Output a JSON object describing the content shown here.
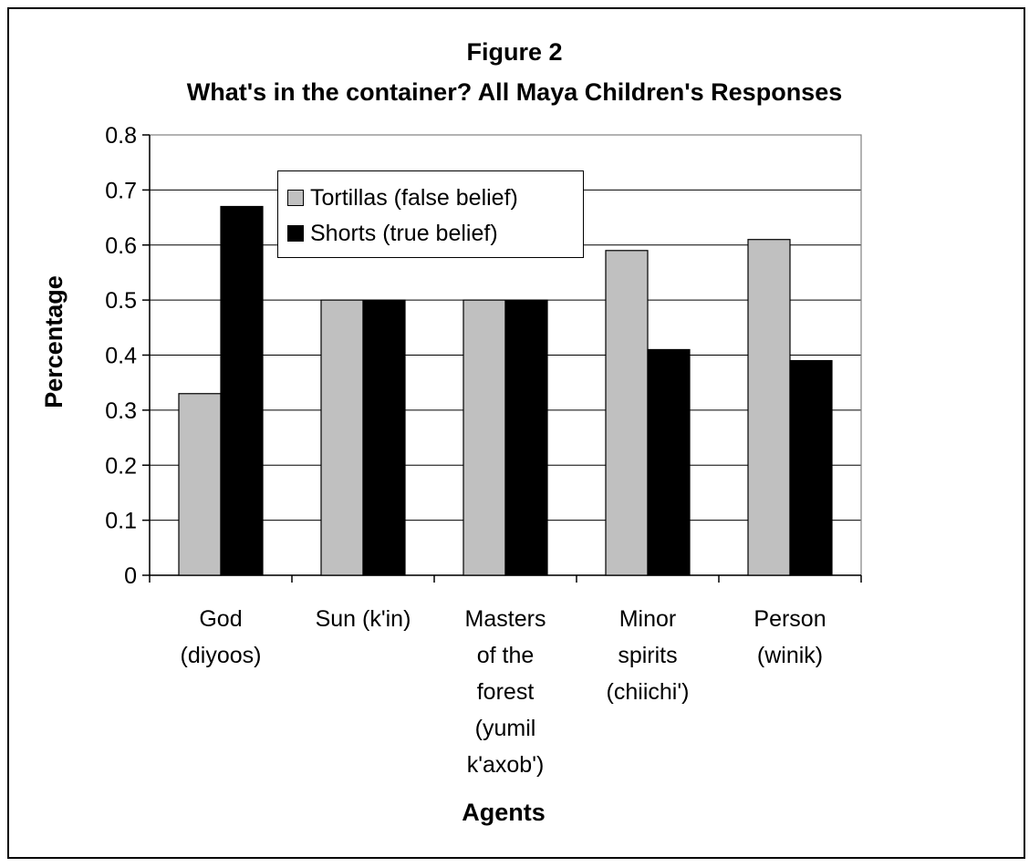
{
  "title_line1": "Figure 2",
  "title_line2": "What's in the container? All Maya Children's Responses",
  "colors": {
    "tortillas": "#c0c0c0",
    "shorts": "#000000",
    "grid": "#000000"
  },
  "chart_data": {
    "type": "bar",
    "title": "Figure 2 What's in the container? All Maya Children's Responses",
    "xlabel": "Agents",
    "ylabel": "Percentage",
    "ylim": [
      0,
      0.8
    ],
    "yticks": [
      "0",
      "0.1",
      "0.2",
      "0.3",
      "0.4",
      "0.5",
      "0.6",
      "0.7",
      "0.8"
    ],
    "grid": true,
    "legend_position": "top-left inside plot",
    "categories": [
      [
        "God",
        "(diyoos)"
      ],
      [
        "Sun (k'in)"
      ],
      [
        "Masters",
        "of the",
        "forest",
        "(yumil",
        "k'axob')"
      ],
      [
        "Minor",
        "spirits",
        "(chiichi')"
      ],
      [
        "Person",
        "(winik)"
      ]
    ],
    "series": [
      {
        "name": "Tortillas (false belief)",
        "values": [
          0.33,
          0.5,
          0.5,
          0.59,
          0.61
        ]
      },
      {
        "name": "Shorts (true belief)",
        "values": [
          0.67,
          0.5,
          0.5,
          0.41,
          0.39
        ]
      }
    ]
  }
}
